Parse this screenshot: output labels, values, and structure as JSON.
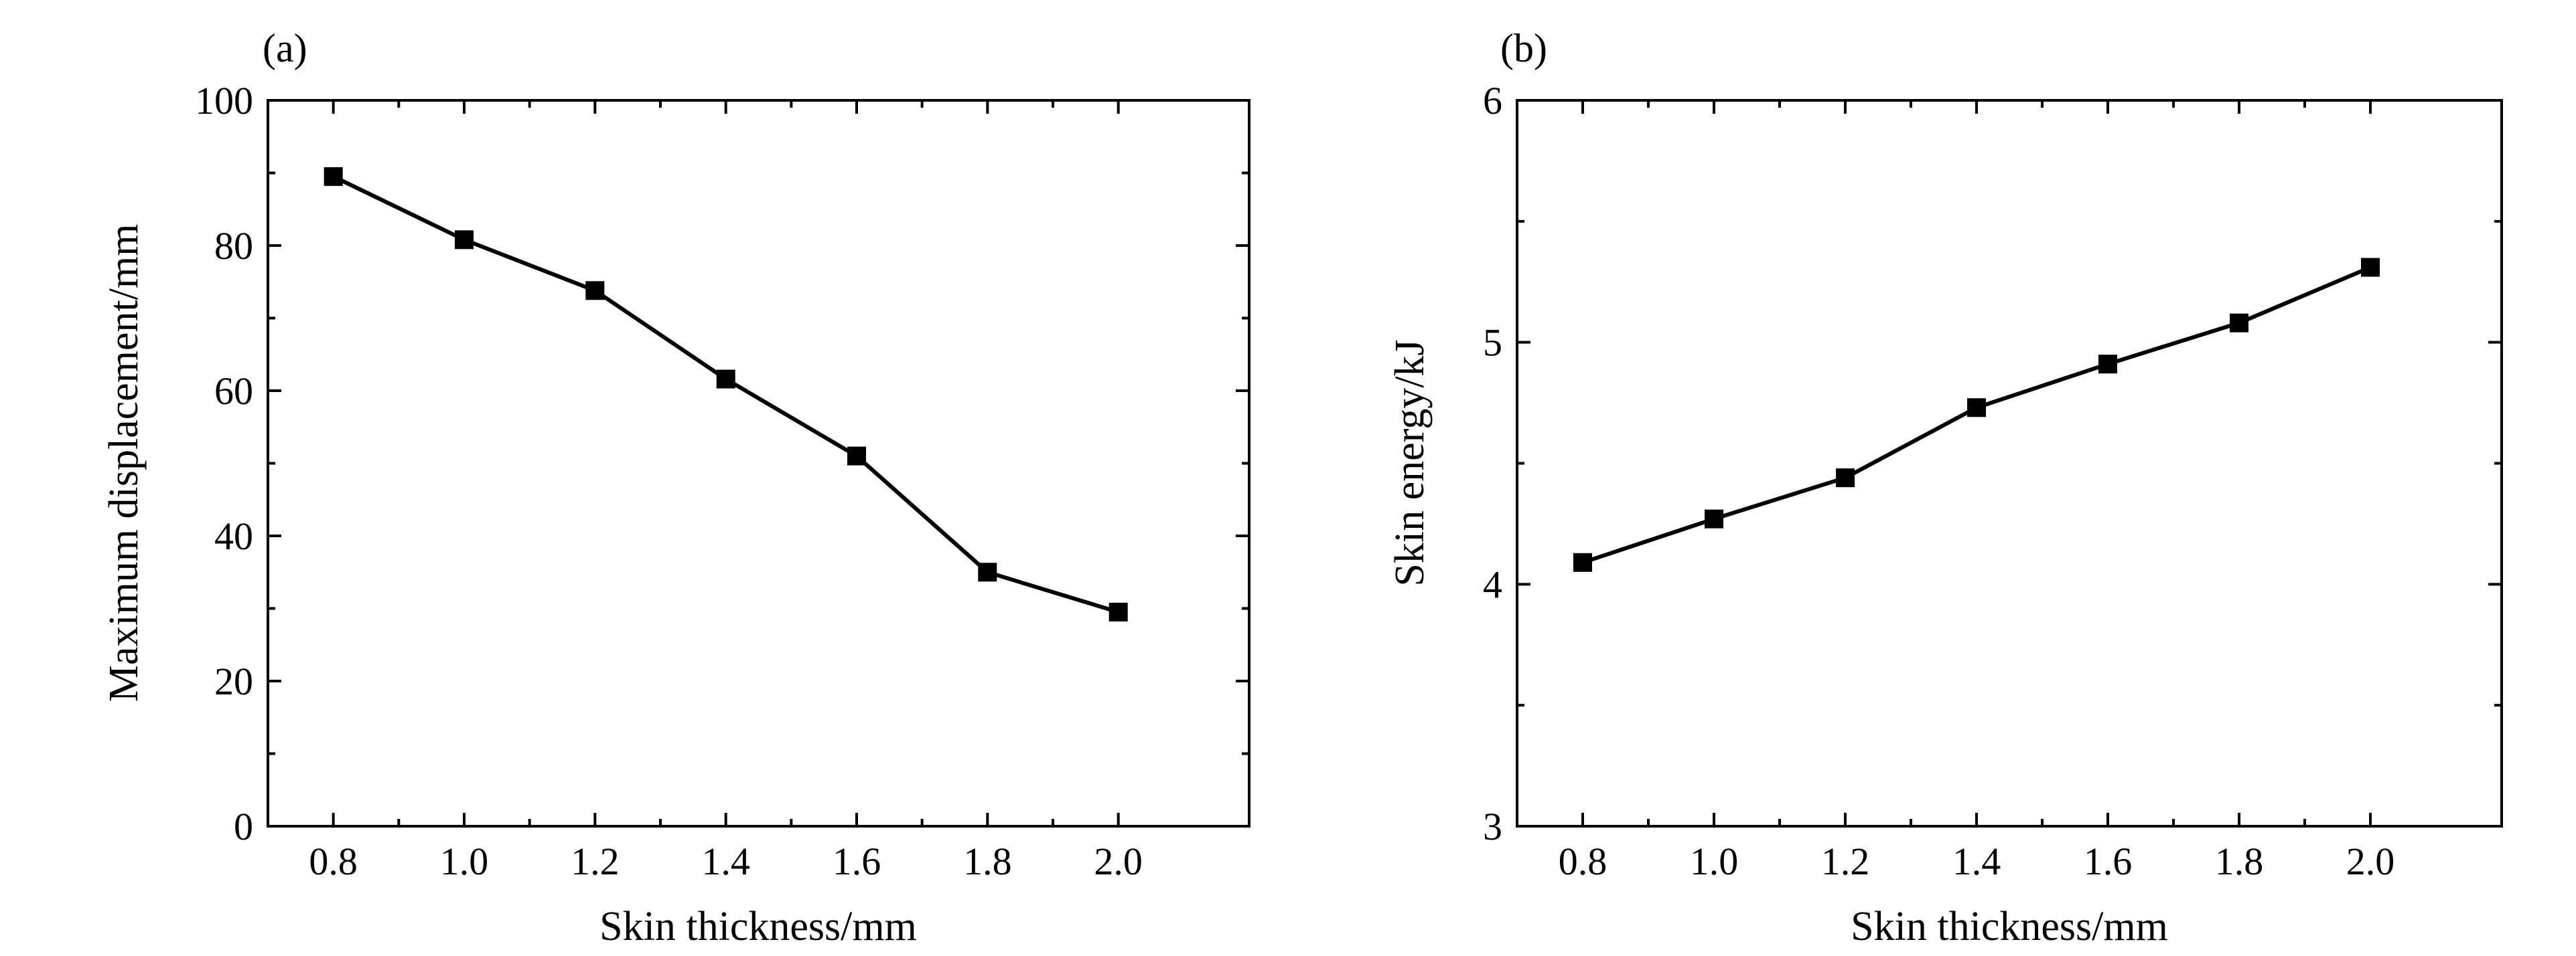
{
  "chart_data": [
    {
      "type": "line",
      "panel_label": "(a)",
      "xlabel": "Skin thickness/mm",
      "ylabel": "Maximum displacement/mm",
      "x": [
        0.8,
        1.0,
        1.2,
        1.4,
        1.6,
        1.8,
        2.0
      ],
      "series": [
        {
          "values": [
            89.5,
            80.8,
            73.8,
            61.6,
            51.0,
            35.0,
            29.5
          ]
        }
      ],
      "xlim": [
        0.7,
        2.2
      ],
      "ylim": [
        0,
        100
      ],
      "x_ticks": [
        "0.8",
        "1.0",
        "1.2",
        "1.4",
        "1.6",
        "1.8",
        "2.0"
      ],
      "y_ticks": [
        "0",
        "20",
        "40",
        "60",
        "80",
        "100"
      ],
      "x_tick_values": [
        0.8,
        1.0,
        1.2,
        1.4,
        1.6,
        1.8,
        2.0
      ],
      "y_tick_values": [
        0,
        20,
        40,
        60,
        80,
        100
      ],
      "y_minor_step": 10,
      "marker": "square",
      "grid": false,
      "legend": "none",
      "color": "#000000"
    },
    {
      "type": "line",
      "panel_label": "(b)",
      "xlabel": "Skin thickness/mm",
      "ylabel": "Skin energy/kJ",
      "x": [
        0.8,
        1.0,
        1.2,
        1.4,
        1.6,
        1.8,
        2.0
      ],
      "series": [
        {
          "values": [
            4.09,
            4.27,
            4.44,
            4.73,
            4.91,
            5.08,
            5.31
          ]
        }
      ],
      "xlim": [
        0.7,
        2.2
      ],
      "ylim": [
        3,
        6
      ],
      "x_ticks": [
        "0.8",
        "1.0",
        "1.2",
        "1.4",
        "1.6",
        "1.8",
        "2.0"
      ],
      "y_ticks": [
        "3",
        "4",
        "5",
        "6"
      ],
      "x_tick_values": [
        0.8,
        1.0,
        1.2,
        1.4,
        1.6,
        1.8,
        2.0
      ],
      "y_tick_values": [
        3,
        4,
        5,
        6
      ],
      "y_minor_step": 0.5,
      "marker": "square",
      "grid": false,
      "legend": "none",
      "color": "#000000"
    }
  ]
}
